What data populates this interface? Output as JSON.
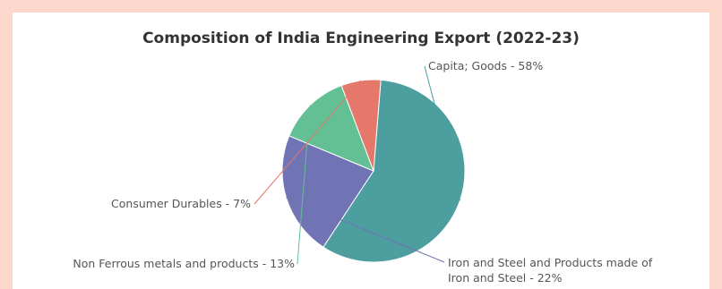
{
  "chart_data": {
    "type": "pie",
    "title": "Composition of India Engineering Export (2022-23)",
    "slices": [
      {
        "name": "Capita; Goods",
        "value": 58,
        "label": "Capita; Goods - 58%",
        "color": "#4d9e9f"
      },
      {
        "name": "Iron and Steel and Products made of Iron and Steel",
        "value": 22,
        "label_lines": [
          "Iron and Steel and Products made of",
          "Iron and Steel - 22%"
        ],
        "color": "#7174b4"
      },
      {
        "name": "Non Ferrous metals and products",
        "value": 13,
        "label": "Non Ferrous metals and products - 13%",
        "color": "#62c094"
      },
      {
        "name": "Consumer Durables",
        "value": 7,
        "label": "Consumer Durables - 7%",
        "color": "#e5776b"
      }
    ]
  }
}
